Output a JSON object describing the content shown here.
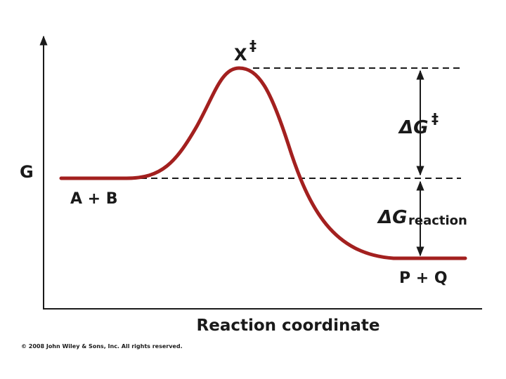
{
  "vertical_axis_label": "G",
  "horizontal_axis_label": "Reaction coordinate",
  "transition_state": {
    "symbol": "X",
    "superscript": "‡"
  },
  "reactants": "A + B",
  "products": "P + Q",
  "activation_energy": {
    "symbol": "ΔG",
    "superscript": "‡"
  },
  "reaction_energy": {
    "symbol": "ΔG",
    "subscript": "reaction"
  },
  "copyright": "© 2008 John Wiley & Sons, Inc. All rights reserved."
}
